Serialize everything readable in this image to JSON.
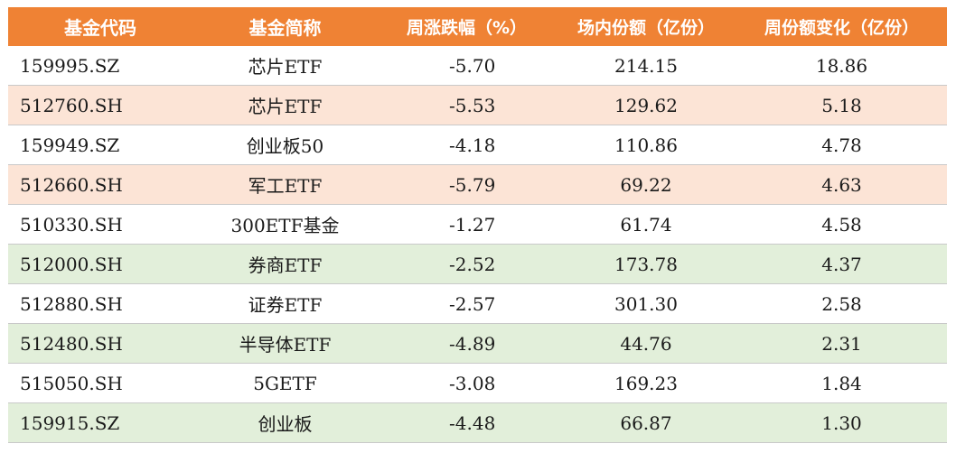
{
  "colors": {
    "header_bg": "#ef8234",
    "header_text": "#ffffff",
    "row_white": "#ffffff",
    "row_orange": "#fce4d6",
    "row_green": "#e2efda"
  },
  "table": {
    "headers": [
      "基金代码",
      "基金简称",
      "周涨跌幅（%）",
      "场内份额（亿份）",
      "周份额变化（亿份）"
    ],
    "rows": [
      {
        "code": "159995.SZ",
        "name": "芯片ETF",
        "weekly_change": "-5.70",
        "on_exchange_shares": "214.15",
        "weekly_share_change": "18.86",
        "highlight": "white"
      },
      {
        "code": "512760.SH",
        "name": "芯片ETF",
        "weekly_change": "-5.53",
        "on_exchange_shares": "129.62",
        "weekly_share_change": "5.18",
        "highlight": "orange"
      },
      {
        "code": "159949.SZ",
        "name": "创业板50",
        "weekly_change": "-4.18",
        "on_exchange_shares": "110.86",
        "weekly_share_change": "4.78",
        "highlight": "white"
      },
      {
        "code": "512660.SH",
        "name": "军工ETF",
        "weekly_change": "-5.79",
        "on_exchange_shares": "69.22",
        "weekly_share_change": "4.63",
        "highlight": "orange"
      },
      {
        "code": "510330.SH",
        "name": "300ETF基金",
        "weekly_change": "-1.27",
        "on_exchange_shares": "61.74",
        "weekly_share_change": "4.58",
        "highlight": "white"
      },
      {
        "code": "512000.SH",
        "name": "券商ETF",
        "weekly_change": "-2.52",
        "on_exchange_shares": "173.78",
        "weekly_share_change": "4.37",
        "highlight": "green"
      },
      {
        "code": "512880.SH",
        "name": "证券ETF",
        "weekly_change": "-2.57",
        "on_exchange_shares": "301.30",
        "weekly_share_change": "2.58",
        "highlight": "white"
      },
      {
        "code": "512480.SH",
        "name": "半导体ETF",
        "weekly_change": "-4.89",
        "on_exchange_shares": "44.76",
        "weekly_share_change": "2.31",
        "highlight": "green"
      },
      {
        "code": "515050.SH",
        "name": "5GETF",
        "weekly_change": "-3.08",
        "on_exchange_shares": "169.23",
        "weekly_share_change": "1.84",
        "highlight": "white"
      },
      {
        "code": "159915.SZ",
        "name": "创业板",
        "weekly_change": "-4.48",
        "on_exchange_shares": "66.87",
        "weekly_share_change": "1.30",
        "highlight": "green"
      }
    ]
  }
}
